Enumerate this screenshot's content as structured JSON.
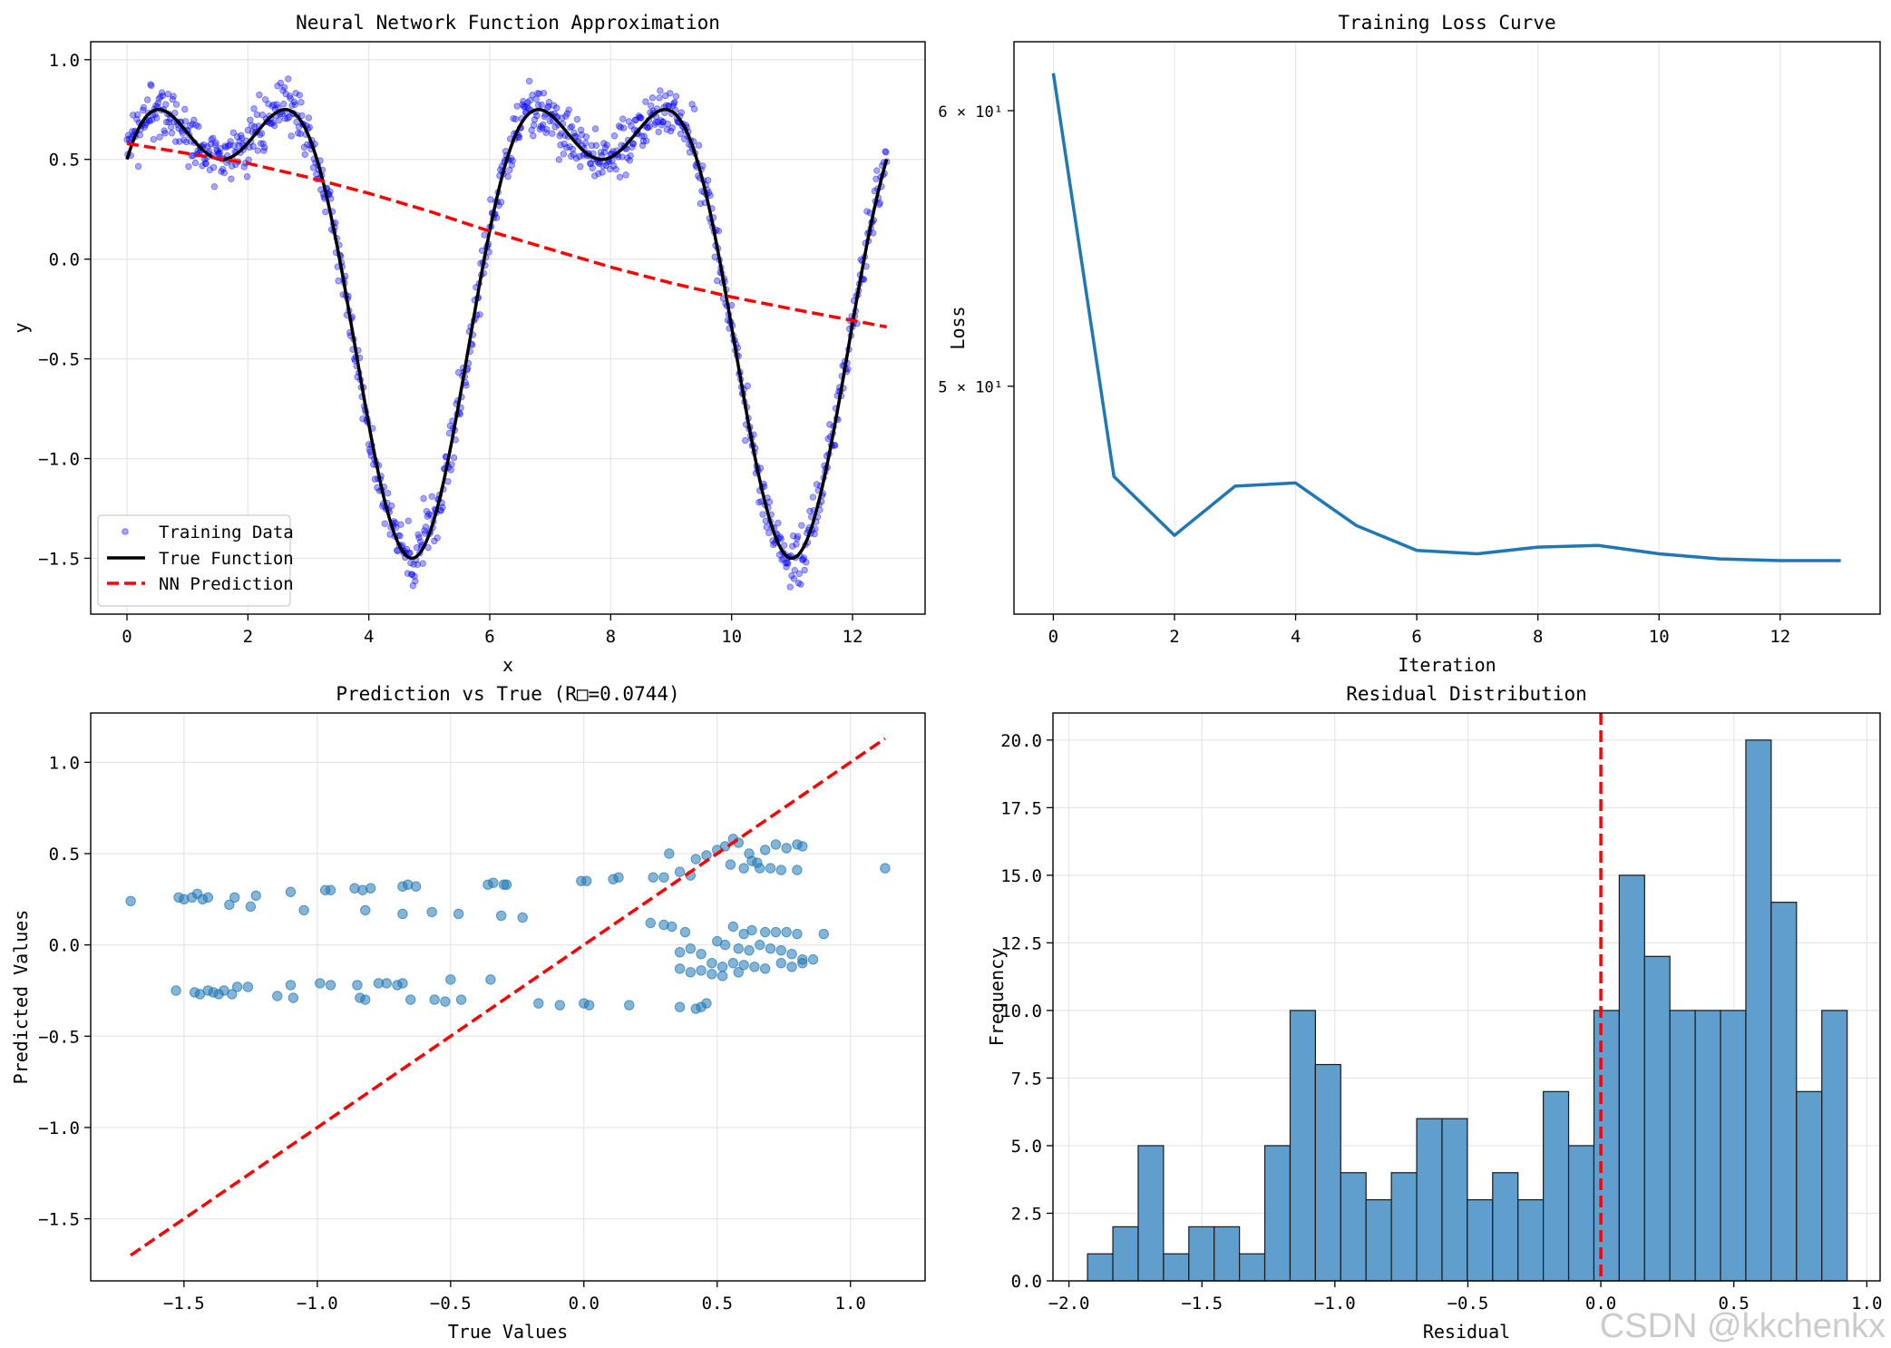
{
  "watermark": "CSDN @kkchenkx",
  "colors": {
    "scatter": "#0000ff",
    "true_fn": "#000000",
    "pred": "#ff0000",
    "loss": "#1f77b4",
    "points": "#1f77b4",
    "hist": "#5f9ecd"
  },
  "chart_data": [
    {
      "type": "line",
      "title": "Neural Network Function Approximation",
      "xlabel": "x",
      "ylabel": "y",
      "xlim": [
        -0.6,
        13.2
      ],
      "ylim": [
        -1.78,
        1.09
      ],
      "xticks": [
        0,
        2,
        4,
        6,
        8,
        10,
        12
      ],
      "yticks": [
        -1.5,
        -1.0,
        -0.5,
        0.0,
        0.5,
        1.0
      ],
      "ytick_labels": [
        "−1.5",
        "−1.0",
        "−0.5",
        "0.0",
        "0.5",
        "1.0"
      ],
      "grid": true,
      "legend": "lower-left",
      "series": [
        {
          "name": "Training Data",
          "kind": "scatter",
          "x_range": [
            0,
            12.566
          ],
          "n": 1000,
          "noise_std": 0.07,
          "formula": "sin(x)+0.5*cos(2x)"
        },
        {
          "name": "True Function",
          "kind": "line",
          "x_range": [
            0,
            12.566
          ],
          "formula": "sin(x)+0.5*cos(2x)"
        },
        {
          "name": "NN Prediction",
          "kind": "line",
          "x": [
            0,
            1,
            2,
            3,
            4,
            5,
            6,
            7,
            8,
            9,
            10,
            11,
            12.566
          ],
          "y": [
            0.58,
            0.53,
            0.48,
            0.41,
            0.33,
            0.24,
            0.14,
            0.05,
            -0.04,
            -0.12,
            -0.19,
            -0.25,
            -0.34
          ]
        }
      ]
    },
    {
      "type": "line",
      "title": "Training Loss Curve",
      "xlabel": "Iteration",
      "ylabel": "Loss",
      "yscale": "log",
      "xlim": [
        -0.65,
        13.65
      ],
      "ylim": [
        43.0,
        62.8
      ],
      "xticks": [
        0,
        2,
        4,
        6,
        8,
        10,
        12
      ],
      "yticks": [
        50,
        60
      ],
      "ytick_labels": [
        "5 × 10¹",
        "6 × 10¹"
      ],
      "grid": true,
      "series": [
        {
          "name": "",
          "x": [
            0,
            1,
            2,
            3,
            4,
            5,
            6,
            7,
            8,
            9,
            10,
            11,
            12,
            13
          ],
          "y": [
            61.5,
            47.1,
            45.3,
            46.8,
            46.9,
            45.6,
            44.85,
            44.75,
            44.95,
            45.0,
            44.75,
            44.6,
            44.55,
            44.55
          ]
        }
      ]
    },
    {
      "type": "scatter",
      "title": "Prediction vs True (R□=0.0744)",
      "xlabel": "True Values",
      "ylabel": "Predicted Values",
      "xlim": [
        -1.85,
        1.28
      ],
      "ylim": [
        -1.84,
        1.27
      ],
      "xticks": [
        -1.5,
        -1.0,
        -0.5,
        0.0,
        0.5,
        1.0
      ],
      "xtick_labels": [
        "−1.5",
        "−1.0",
        "−0.5",
        "0.0",
        "0.5",
        "1.0"
      ],
      "yticks": [
        -1.5,
        -1.0,
        -0.5,
        0.0,
        0.5,
        1.0
      ],
      "ytick_labels": [
        "−1.5",
        "−1.0",
        "−0.5",
        "0.0",
        "0.5",
        "1.0"
      ],
      "grid": true,
      "reference_line": {
        "x": [
          -1.7,
          1.13
        ],
        "y": [
          -1.7,
          1.13
        ]
      },
      "points": [
        [
          -1.7,
          0.24
        ],
        [
          -1.52,
          0.26
        ],
        [
          -1.5,
          0.25
        ],
        [
          -1.47,
          0.26
        ],
        [
          -1.45,
          0.28
        ],
        [
          -1.43,
          0.25
        ],
        [
          -1.41,
          0.26
        ],
        [
          -1.33,
          0.22
        ],
        [
          -1.31,
          0.26
        ],
        [
          -1.25,
          0.21
        ],
        [
          -1.23,
          0.27
        ],
        [
          -1.1,
          0.29
        ],
        [
          -1.05,
          0.19
        ],
        [
          -0.97,
          0.3
        ],
        [
          -0.95,
          0.3
        ],
        [
          -0.86,
          0.31
        ],
        [
          -0.83,
          0.3
        ],
        [
          -0.82,
          0.19
        ],
        [
          -0.8,
          0.31
        ],
        [
          -0.68,
          0.32
        ],
        [
          -0.66,
          0.33
        ],
        [
          -0.63,
          0.32
        ],
        [
          -0.68,
          0.17
        ],
        [
          -0.57,
          0.18
        ],
        [
          -0.47,
          0.17
        ],
        [
          -0.36,
          0.33
        ],
        [
          -0.34,
          0.34
        ],
        [
          -0.3,
          0.33
        ],
        [
          -0.29,
          0.33
        ],
        [
          -0.31,
          0.16
        ],
        [
          -0.23,
          0.15
        ],
        [
          -0.01,
          0.35
        ],
        [
          0.01,
          0.35
        ],
        [
          0.11,
          0.36
        ],
        [
          0.13,
          0.37
        ],
        [
          0.26,
          0.37
        ],
        [
          0.3,
          0.37
        ],
        [
          0.32,
          0.5
        ],
        [
          0.36,
          0.4
        ],
        [
          0.4,
          0.38
        ],
        [
          0.42,
          0.47
        ],
        [
          0.46,
          0.49
        ],
        [
          0.5,
          0.52
        ],
        [
          0.53,
          0.54
        ],
        [
          0.56,
          0.58
        ],
        [
          0.58,
          0.56
        ],
        [
          0.62,
          0.5
        ],
        [
          0.65,
          0.45
        ],
        [
          0.68,
          0.52
        ],
        [
          0.72,
          0.55
        ],
        [
          0.76,
          0.53
        ],
        [
          0.8,
          0.55
        ],
        [
          0.82,
          0.54
        ],
        [
          0.7,
          0.42
        ],
        [
          0.74,
          0.41
        ],
        [
          0.8,
          0.41
        ],
        [
          0.6,
          0.42
        ],
        [
          0.55,
          0.44
        ],
        [
          0.66,
          0.42
        ],
        [
          0.63,
          0.46
        ],
        [
          1.13,
          0.42
        ],
        [
          0.25,
          0.12
        ],
        [
          0.3,
          0.11
        ],
        [
          0.33,
          0.1
        ],
        [
          0.38,
          0.07
        ],
        [
          0.56,
          0.1
        ],
        [
          0.63,
          0.08
        ],
        [
          0.68,
          0.07
        ],
        [
          0.72,
          0.07
        ],
        [
          0.76,
          0.07
        ],
        [
          0.8,
          0.06
        ],
        [
          0.9,
          0.06
        ],
        [
          0.6,
          0.06
        ],
        [
          0.5,
          0.02
        ],
        [
          0.53,
          0.0
        ],
        [
          0.58,
          -0.02
        ],
        [
          0.62,
          -0.03
        ],
        [
          0.66,
          0.0
        ],
        [
          0.7,
          -0.02
        ],
        [
          0.74,
          -0.03
        ],
        [
          0.78,
          -0.05
        ],
        [
          0.82,
          -0.08
        ],
        [
          0.86,
          -0.08
        ],
        [
          0.36,
          -0.04
        ],
        [
          0.4,
          -0.02
        ],
        [
          0.44,
          -0.05
        ],
        [
          0.48,
          -0.1
        ],
        [
          0.52,
          -0.12
        ],
        [
          0.56,
          -0.1
        ],
        [
          0.6,
          -0.11
        ],
        [
          0.64,
          -0.12
        ],
        [
          0.68,
          -0.13
        ],
        [
          0.74,
          -0.1
        ],
        [
          0.78,
          -0.12
        ],
        [
          0.82,
          -0.1
        ],
        [
          0.36,
          -0.13
        ],
        [
          0.4,
          -0.15
        ],
        [
          0.44,
          -0.14
        ],
        [
          0.48,
          -0.16
        ],
        [
          0.52,
          -0.17
        ],
        [
          0.58,
          -0.15
        ],
        [
          -1.53,
          -0.25
        ],
        [
          -1.46,
          -0.26
        ],
        [
          -1.44,
          -0.27
        ],
        [
          -1.41,
          -0.25
        ],
        [
          -1.39,
          -0.26
        ],
        [
          -1.37,
          -0.27
        ],
        [
          -1.35,
          -0.25
        ],
        [
          -1.32,
          -0.27
        ],
        [
          -1.3,
          -0.23
        ],
        [
          -1.26,
          -0.23
        ],
        [
          -1.15,
          -0.28
        ],
        [
          -1.1,
          -0.22
        ],
        [
          -1.09,
          -0.29
        ],
        [
          -0.99,
          -0.21
        ],
        [
          -0.95,
          -0.22
        ],
        [
          -0.85,
          -0.22
        ],
        [
          -0.84,
          -0.29
        ],
        [
          -0.82,
          -0.3
        ],
        [
          -0.77,
          -0.21
        ],
        [
          -0.74,
          -0.21
        ],
        [
          -0.7,
          -0.22
        ],
        [
          -0.68,
          -0.21
        ],
        [
          -0.65,
          -0.3
        ],
        [
          -0.56,
          -0.3
        ],
        [
          -0.52,
          -0.31
        ],
        [
          -0.5,
          -0.19
        ],
        [
          -0.46,
          -0.3
        ],
        [
          -0.35,
          -0.19
        ],
        [
          -0.17,
          -0.32
        ],
        [
          -0.09,
          -0.33
        ],
        [
          0.0,
          -0.32
        ],
        [
          0.02,
          -0.33
        ],
        [
          0.17,
          -0.33
        ],
        [
          0.36,
          -0.34
        ],
        [
          0.42,
          -0.35
        ],
        [
          0.44,
          -0.34
        ],
        [
          0.46,
          -0.32
        ]
      ]
    },
    {
      "type": "bar",
      "title": "Residual Distribution",
      "xlabel": "Residual",
      "ylabel": "Frequency",
      "xlim": [
        -2.06,
        1.05
      ],
      "ylim": [
        0,
        21.0
      ],
      "xticks": [
        -2.0,
        -1.5,
        -1.0,
        -0.5,
        0.0,
        0.5,
        1.0
      ],
      "xtick_labels": [
        "−2.0",
        "−1.5",
        "−1.0",
        "−0.5",
        "0.0",
        "0.5",
        "1.0"
      ],
      "yticks": [
        0,
        2.5,
        5,
        7.5,
        10,
        12.5,
        15,
        17.5,
        20
      ],
      "ytick_labels": [
        "0.0",
        "2.5",
        "5.0",
        "7.5",
        "10.0",
        "12.5",
        "15.0",
        "17.5",
        "20.0"
      ],
      "grid": true,
      "bin_start": -1.93,
      "bin_width": 0.0952,
      "values": [
        1,
        2,
        5,
        1,
        2,
        2,
        1,
        5,
        10,
        8,
        4,
        3,
        4,
        6,
        6,
        3,
        4,
        3,
        7,
        5,
        10,
        15,
        12,
        10,
        10,
        10,
        20,
        14,
        7,
        10
      ],
      "vline_x": 0.0
    }
  ]
}
